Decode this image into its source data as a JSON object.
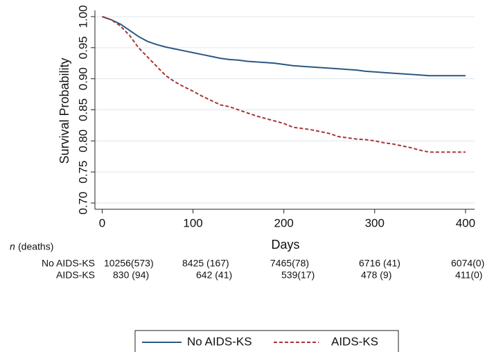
{
  "chart_data": {
    "type": "line",
    "y_label": "Survival Probability",
    "x_label": "Days",
    "x": [
      0,
      10,
      20,
      30,
      40,
      50,
      60,
      70,
      80,
      90,
      100,
      110,
      120,
      130,
      140,
      150,
      160,
      170,
      180,
      190,
      200,
      210,
      220,
      230,
      240,
      250,
      260,
      270,
      280,
      290,
      300,
      310,
      320,
      330,
      340,
      350,
      360,
      370,
      380,
      390,
      400
    ],
    "series": [
      {
        "name": "No AIDS-KS",
        "color": "#2b5784",
        "dash": false,
        "values": [
          1.0,
          0.995,
          0.988,
          0.978,
          0.968,
          0.96,
          0.955,
          0.951,
          0.948,
          0.945,
          0.942,
          0.939,
          0.936,
          0.933,
          0.931,
          0.93,
          0.928,
          0.927,
          0.926,
          0.925,
          0.923,
          0.921,
          0.92,
          0.919,
          0.918,
          0.917,
          0.916,
          0.915,
          0.914,
          0.912,
          0.911,
          0.91,
          0.909,
          0.908,
          0.907,
          0.906,
          0.905,
          0.905,
          0.905,
          0.905,
          0.905
        ]
      },
      {
        "name": "AIDS-KS",
        "color": "#a83434",
        "dash": true,
        "values": [
          1.0,
          0.995,
          0.985,
          0.97,
          0.95,
          0.935,
          0.92,
          0.905,
          0.895,
          0.887,
          0.88,
          0.872,
          0.865,
          0.858,
          0.855,
          0.85,
          0.845,
          0.84,
          0.836,
          0.832,
          0.828,
          0.822,
          0.82,
          0.818,
          0.815,
          0.812,
          0.807,
          0.805,
          0.803,
          0.802,
          0.8,
          0.797,
          0.795,
          0.792,
          0.789,
          0.785,
          0.782,
          0.782,
          0.782,
          0.782,
          0.782
        ]
      }
    ],
    "xlim": [
      -8,
      410
    ],
    "ylim": [
      0.69,
      1.01
    ],
    "xticks": [
      0,
      100,
      200,
      300,
      400
    ],
    "yticks": [
      {
        "value": 0.7,
        "label": "0.70"
      },
      0.75,
      {
        "value": 0.8,
        "label": "0.80"
      },
      0.85,
      {
        "value": 0.9,
        "label": "0.90"
      },
      0.95,
      {
        "value": 1.0,
        "label": "1.00"
      }
    ],
    "grid": true,
    "legend": "bottom",
    "risk_table": {
      "header_italic": "n",
      "header": "(deaths)",
      "rows": [
        {
          "name": "No AIDS-KS",
          "cells": [
            "10256(573)",
            "8425 (167)",
            "7465(78)",
            "6716 (41)",
            "6074(0)"
          ]
        },
        {
          "name": "AIDS-KS",
          "cells": [
            "830 (94)",
            "642 (41)",
            "539(17)",
            "478 (9)",
            "411(0)"
          ]
        }
      ]
    }
  }
}
